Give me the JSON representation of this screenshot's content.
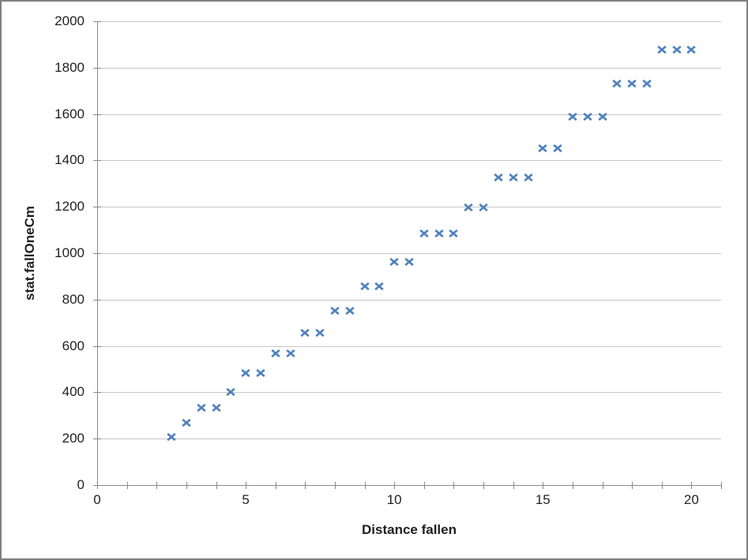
{
  "chart_data": {
    "type": "scatter",
    "title": "",
    "xlabel": "Distance fallen",
    "ylabel": "stat.fallOneCm",
    "x_axis": {
      "min": 0,
      "max": 21,
      "tick_step": 1,
      "labeled_ticks": [
        0,
        5,
        10,
        15,
        20
      ],
      "tick_labels": [
        "0",
        "5",
        "10",
        "15",
        "20"
      ]
    },
    "y_axis": {
      "min": 0,
      "max": 2000,
      "tick_step": 200,
      "tick_labels": [
        "0",
        "200",
        "400",
        "600",
        "800",
        "1000",
        "1200",
        "1400",
        "1600",
        "1800",
        "2000"
      ]
    },
    "grid": "horizontal",
    "legend": "none",
    "marker": {
      "shape": "x",
      "size": 12,
      "color": "#4F81BD"
    },
    "points": [
      [
        2.5,
        212
      ],
      [
        3.0,
        271
      ],
      [
        3.5,
        337
      ],
      [
        4.0,
        337
      ],
      [
        4.5,
        406
      ],
      [
        5.0,
        488
      ],
      [
        5.5,
        488
      ],
      [
        6.0,
        573
      ],
      [
        6.5,
        573
      ],
      [
        7.0,
        659
      ],
      [
        7.5,
        659
      ],
      [
        8.0,
        755
      ],
      [
        8.5,
        755
      ],
      [
        9.0,
        861
      ],
      [
        9.5,
        861
      ],
      [
        10.0,
        967
      ],
      [
        10.5,
        967
      ],
      [
        11.0,
        1090
      ],
      [
        11.5,
        1090
      ],
      [
        12.0,
        1090
      ],
      [
        12.5,
        1202
      ],
      [
        13.0,
        1202
      ],
      [
        13.5,
        1329
      ],
      [
        14.0,
        1329
      ],
      [
        14.5,
        1329
      ],
      [
        15.0,
        1457
      ],
      [
        15.5,
        1457
      ],
      [
        16.0,
        1593
      ],
      [
        16.5,
        1593
      ],
      [
        17.0,
        1593
      ],
      [
        17.5,
        1734
      ],
      [
        18.0,
        1734
      ],
      [
        18.5,
        1734
      ],
      [
        19.0,
        1880
      ],
      [
        19.5,
        1880
      ],
      [
        20.0,
        1880
      ]
    ]
  },
  "colors": {
    "marker": "#4F81BD",
    "gridline": "#C6C6C6",
    "axis": "#898989",
    "tick_label_text": "#1f1f1f",
    "title_text": "#1f1f1f",
    "frame_border": "#808080",
    "background": "#FFFFFF"
  }
}
